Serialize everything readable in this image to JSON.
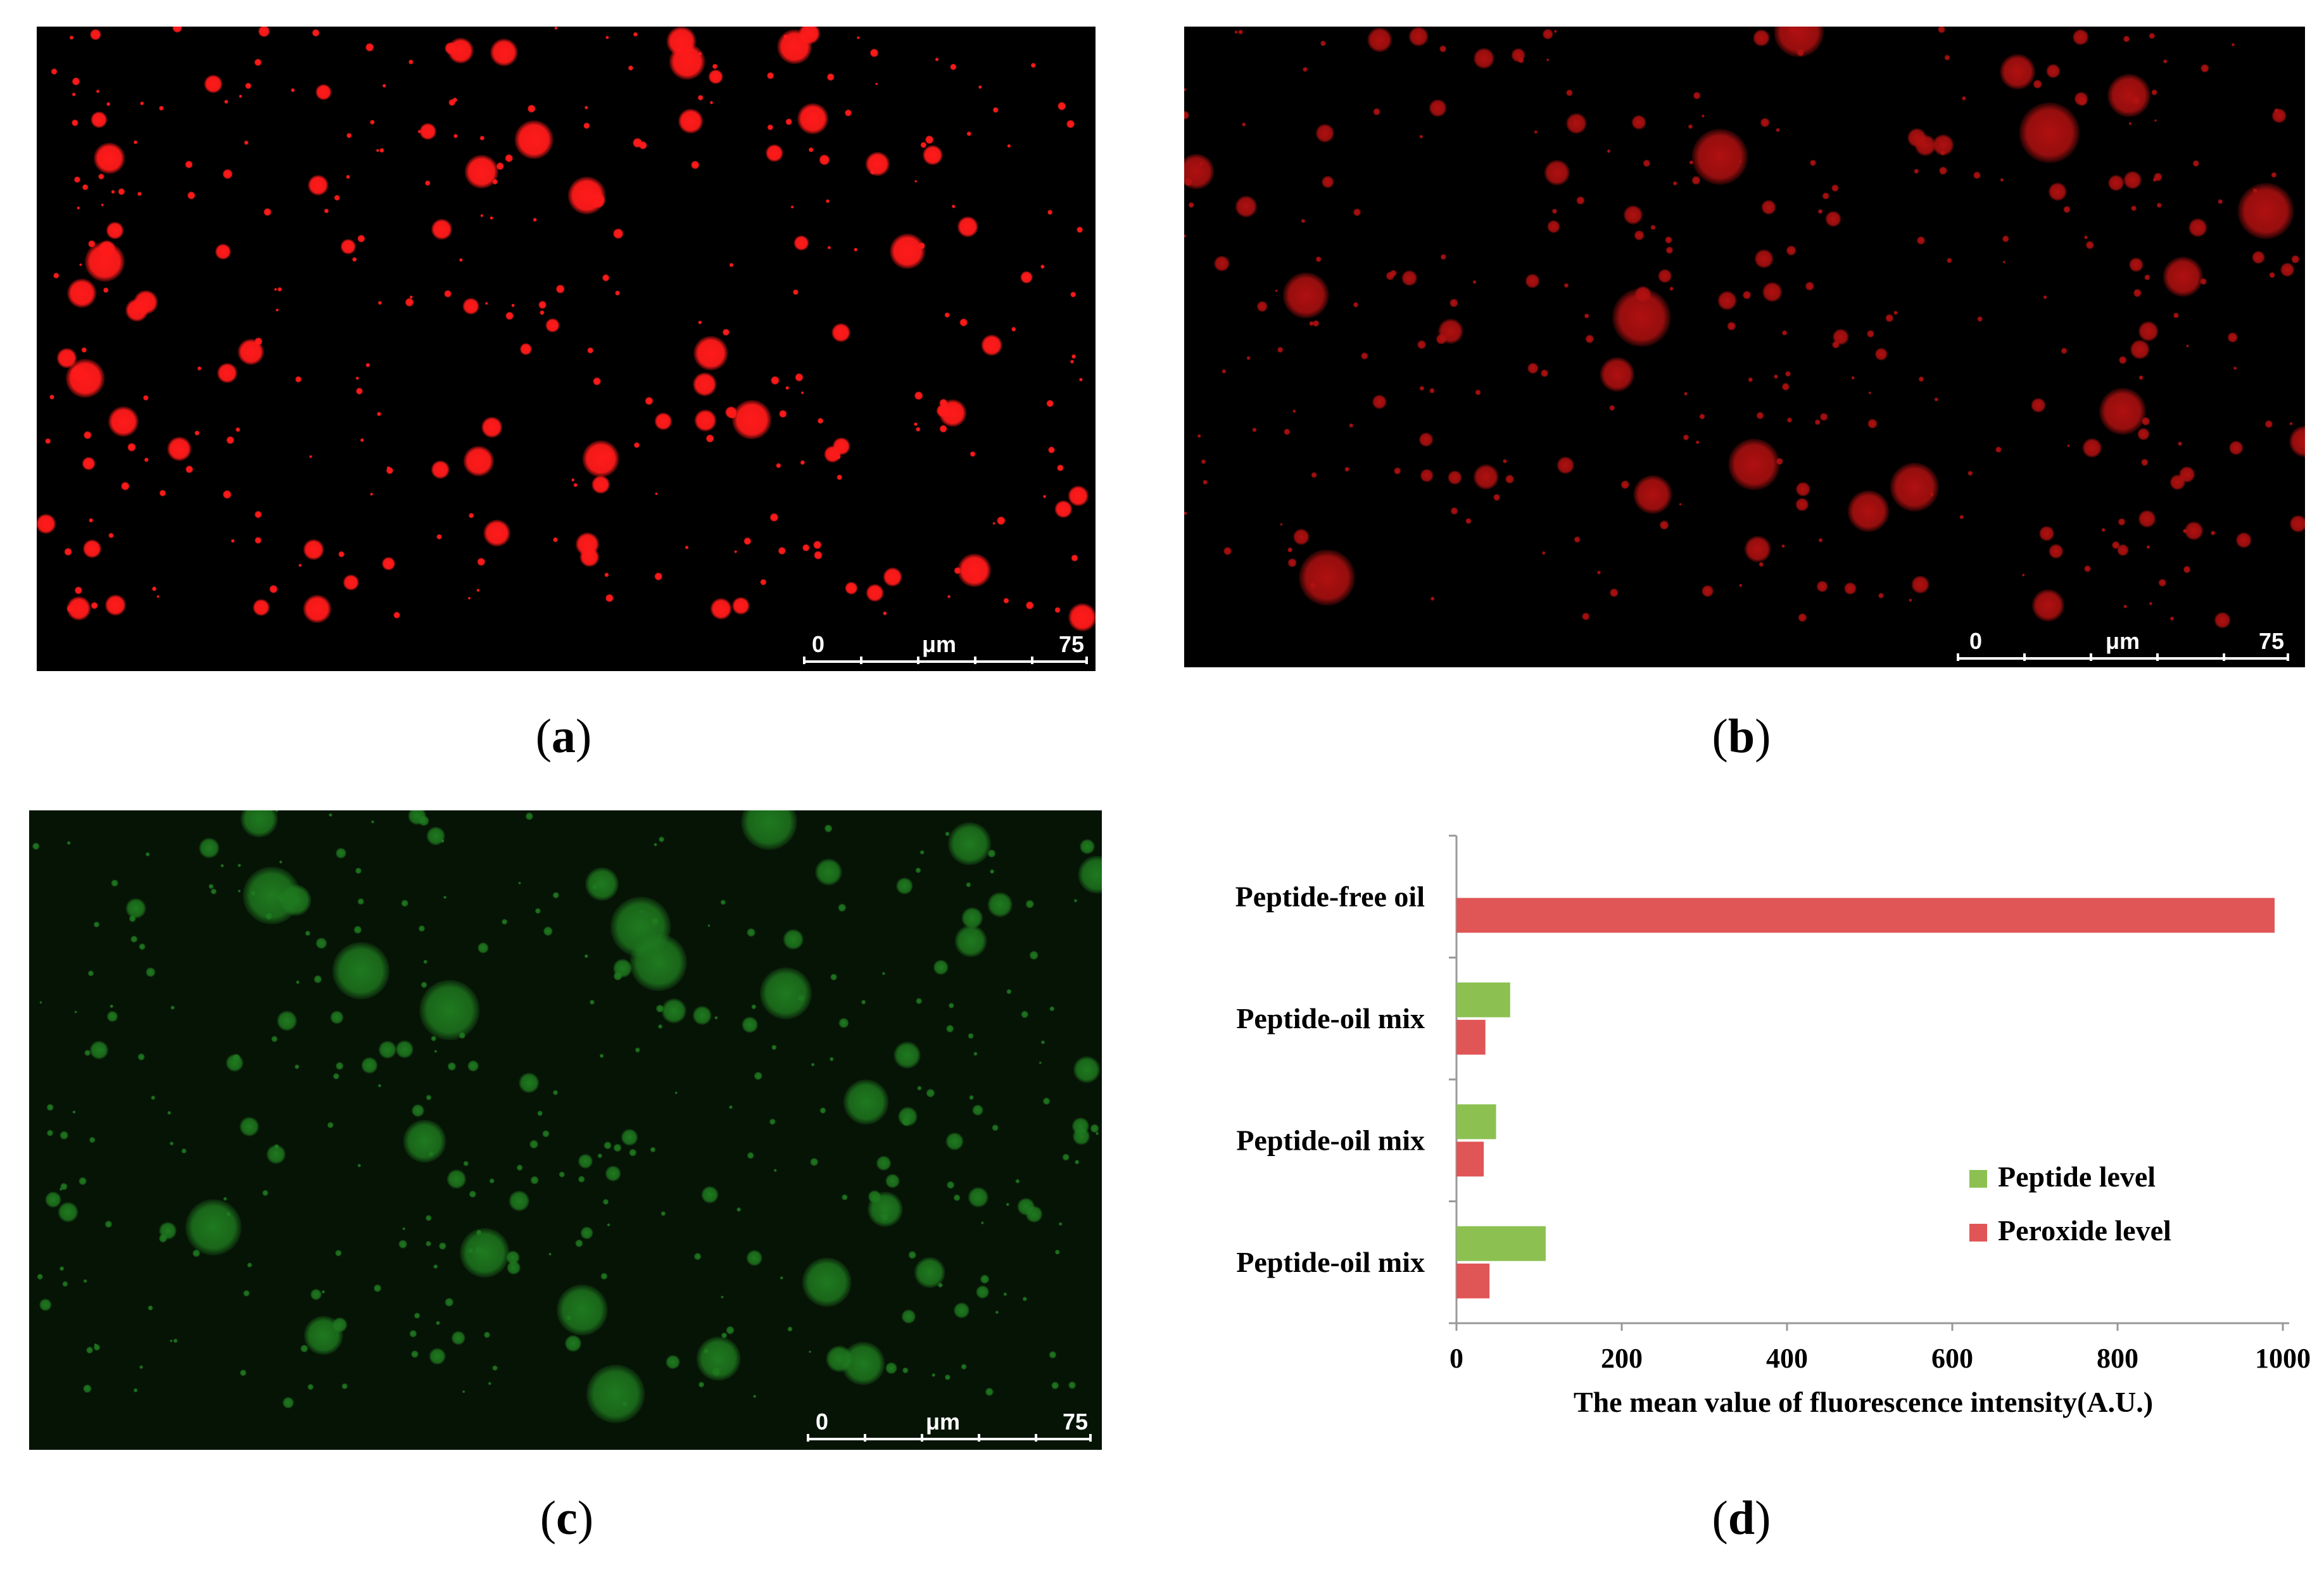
{
  "panels": {
    "a": {
      "caption_letter": "a",
      "scale": {
        "start": "0",
        "unit": "μm",
        "end": "75"
      },
      "color": "#ff1a1a"
    },
    "b": {
      "caption_letter": "b",
      "scale": {
        "start": "0",
        "unit": "μm",
        "end": "75"
      },
      "color": "#b01010"
    },
    "c": {
      "caption_letter": "c",
      "scale": {
        "start": "0",
        "unit": "μm",
        "end": "75"
      },
      "color": "#1f7a1f"
    },
    "d": {
      "caption_letter": "d"
    }
  },
  "chart_data": {
    "type": "bar",
    "orientation": "horizontal",
    "categories": [
      "Peptide-free oil",
      "Peptide-oil mix",
      "Peptide-oil mix",
      "Peptide-oil mix"
    ],
    "series": [
      {
        "name": "Peptide level",
        "color": "#8cc152",
        "values": [
          0,
          65,
          48,
          108
        ]
      },
      {
        "name": "Peroxide level",
        "color": "#e05555",
        "values": [
          990,
          35,
          33,
          40
        ]
      }
    ],
    "xlabel": "The mean value of fluorescence  intensity(A.U.)",
    "xlim": [
      0,
      1000
    ],
    "xticks": [
      0,
      200,
      400,
      600,
      800,
      1000
    ],
    "legend_position": "bottom-right",
    "grid": false
  }
}
